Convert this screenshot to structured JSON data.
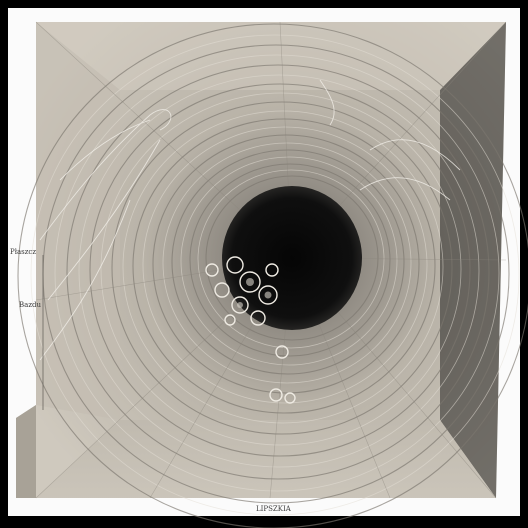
{
  "image": {
    "subject": "stone-tunnel",
    "colors": {
      "frame": "#000000",
      "paper": "#fbfbfb",
      "wall_light": "#cfc9bf",
      "wall_mid": "#a8a296",
      "wall_dark": "#6e6a63",
      "hole": "#0c0c0c"
    }
  },
  "labels": {
    "left_top": "Płaszcz",
    "left_mid": "Bazdu",
    "bottom": "LIPSZKIA"
  }
}
